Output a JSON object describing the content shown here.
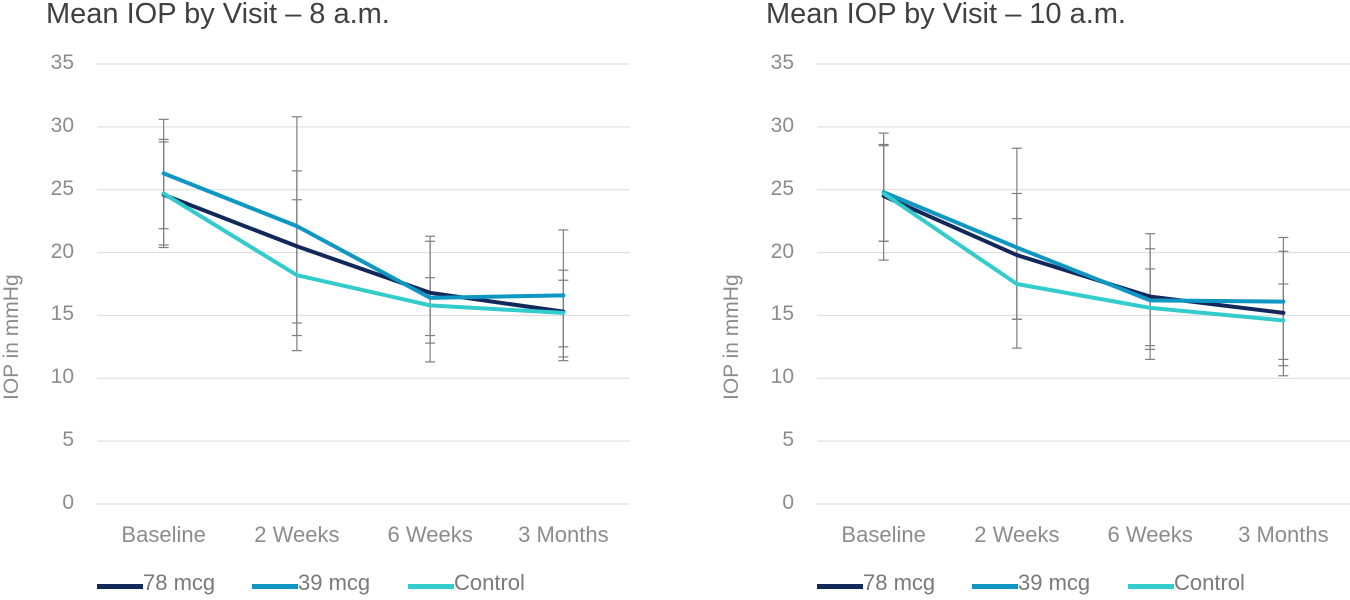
{
  "chart_data": [
    {
      "type": "line",
      "title": "Mean IOP by Visit – 8 a.m.",
      "ylabel": "IOP in mmHg",
      "xlabel": "",
      "categories": [
        "Baseline",
        "2 Weeks",
        "6 Weeks",
        "3 Months"
      ],
      "ylim": [
        0,
        35
      ],
      "yticks": [
        "0",
        "5",
        "10",
        "15",
        "20",
        "25",
        "30",
        "35"
      ],
      "grid": true,
      "legend_position": "bottom",
      "series": [
        {
          "name": "78 mcg",
          "color": "#13285a",
          "values": [
            24.6,
            20.5,
            16.8,
            15.3
          ],
          "err_low": [
            20.4,
            14.4,
            13.4,
            11.7
          ],
          "err_high": [
            28.8,
            26.5,
            20.9,
            18.6
          ]
        },
        {
          "name": "39 mcg",
          "color": "#0e97c2",
          "values": [
            26.3,
            22.1,
            16.4,
            16.6
          ],
          "err_low": [
            21.9,
            13.4,
            11.3,
            11.4
          ],
          "err_high": [
            30.6,
            30.8,
            21.3,
            21.8
          ]
        },
        {
          "name": "Control",
          "color": "#33cccc",
          "values": [
            24.7,
            18.2,
            15.8,
            15.2
          ],
          "err_low": [
            20.6,
            12.2,
            12.8,
            12.5
          ],
          "err_high": [
            29.0,
            24.2,
            18.0,
            17.8
          ]
        }
      ]
    },
    {
      "type": "line",
      "title": "Mean IOP by Visit – 10 a.m.",
      "ylabel": "IOP in mmHg",
      "xlabel": "",
      "categories": [
        "Baseline",
        "2 Weeks",
        "6 Weeks",
        "3 Months"
      ],
      "ylim": [
        0,
        35
      ],
      "yticks": [
        "0",
        "5",
        "10",
        "15",
        "20",
        "25",
        "30",
        "35"
      ],
      "grid": true,
      "legend_position": "bottom",
      "series": [
        {
          "name": "78 mcg",
          "color": "#13285a",
          "values": [
            24.5,
            19.8,
            16.5,
            15.2
          ],
          "err_low": [
            20.9,
            14.7,
            12.3,
            11.0
          ],
          "err_high": [
            28.5,
            24.7,
            20.3,
            20.1
          ]
        },
        {
          "name": "39 mcg",
          "color": "#0e97c2",
          "values": [
            24.8,
            20.4,
            16.2,
            16.1
          ],
          "err_low": [
            19.4,
            12.4,
            11.5,
            10.2
          ],
          "err_high": [
            29.5,
            28.3,
            21.5,
            21.2
          ]
        },
        {
          "name": "Control",
          "color": "#33cccc",
          "values": [
            24.7,
            17.5,
            15.6,
            14.6
          ],
          "err_low": [
            20.9,
            14.7,
            12.6,
            11.5
          ],
          "err_high": [
            28.6,
            22.7,
            18.7,
            17.5
          ]
        }
      ]
    }
  ]
}
